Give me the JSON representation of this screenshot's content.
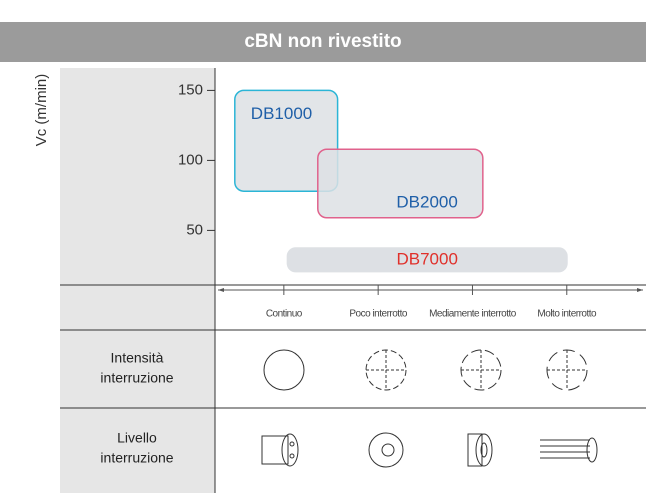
{
  "chart_data": {
    "type": "region",
    "title": "cBN non rivestito",
    "y_label": "Vc (m/min)",
    "ylim": [
      11,
      166
    ],
    "yticks": [
      50,
      100,
      150
    ],
    "xlim": [
      -0.73,
      3.84
    ],
    "categories": [
      "Continuo",
      "Poco interrotto",
      "Mediamente interrotto",
      "Molto interrotto"
    ],
    "regions": [
      {
        "name": "DB1000",
        "stroke": "#2bb5d6",
        "label_color": "#1f5fa8",
        "x": [
          -0.52,
          0.57
        ],
        "y": [
          78,
          150
        ]
      },
      {
        "name": "DB2000",
        "stroke": "#e0628c",
        "label_color": "#1f5fa8",
        "x": [
          0.36,
          2.11
        ],
        "y": [
          59,
          108
        ]
      },
      {
        "name": "DB7000",
        "stroke": "none",
        "label_color": "#e0302a",
        "x": [
          0.03,
          3.01
        ],
        "y": [
          20,
          38
        ]
      }
    ],
    "rows": [
      [
        "Intensità",
        "interruzione"
      ],
      [
        "Livello",
        "interruzione"
      ]
    ]
  }
}
